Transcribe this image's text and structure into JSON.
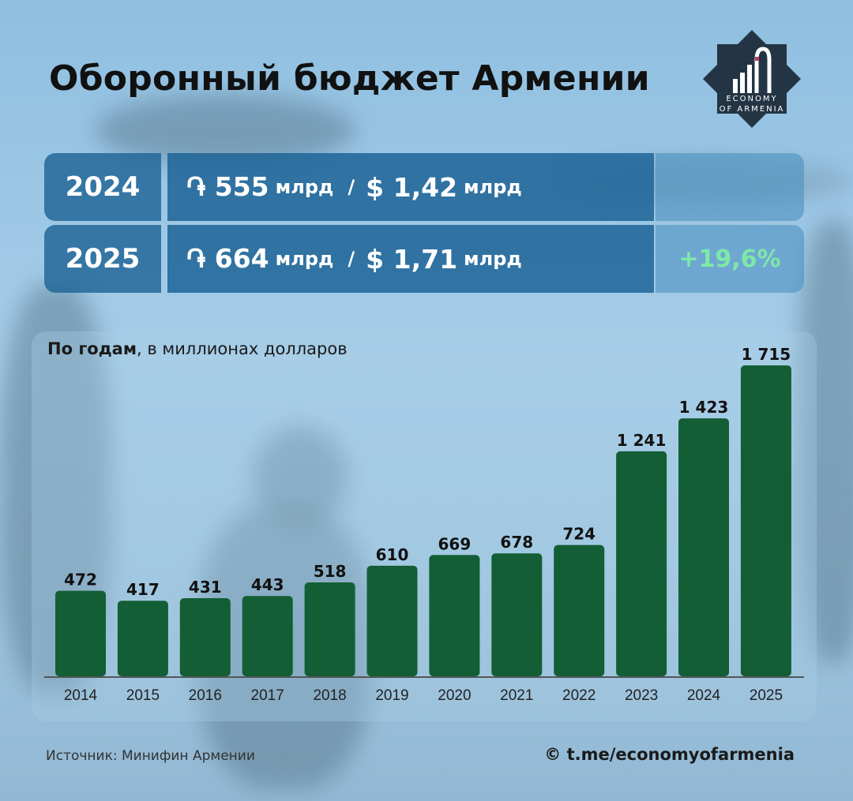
{
  "title": "Оборонный бюджет Армении",
  "logo": {
    "line1": "ECONOMY",
    "line2": "OF ARMENIA"
  },
  "summary": [
    {
      "year": "2024",
      "amd": "֏ 555",
      "amd_unit": "млрд",
      "sep": "/",
      "usd": "$ 1,42",
      "usd_unit": "млрд",
      "change": ""
    },
    {
      "year": "2025",
      "amd": "֏ 664",
      "amd_unit": "млрд",
      "sep": "/",
      "usd": "$ 1,71",
      "usd_unit": "млрд",
      "change": "+19,6%"
    }
  ],
  "chart_subtitle_bold": "По годам",
  "chart_subtitle_rest": ", в миллионах долларов",
  "colors": {
    "bar": "#135e35",
    "axis": "#555555",
    "change": "#7ee8a8"
  },
  "chart_data": {
    "type": "bar",
    "title": "По годам, в миллионах долларов",
    "categories": [
      "2014",
      "2015",
      "2016",
      "2017",
      "2018",
      "2019",
      "2020",
      "2021",
      "2022",
      "2023",
      "2024",
      "2025"
    ],
    "values": [
      472,
      417,
      431,
      443,
      518,
      610,
      669,
      678,
      724,
      1241,
      1423,
      1715
    ],
    "value_labels": [
      "472",
      "417",
      "431",
      "443",
      "518",
      "610",
      "669",
      "678",
      "724",
      "1 241",
      "1 423",
      "1 715"
    ],
    "xlabel": "",
    "ylabel": "",
    "ylim": [
      0,
      1715
    ]
  },
  "source": "Источник: Минифин Армении",
  "site": "© t.me/economyofarmenia"
}
